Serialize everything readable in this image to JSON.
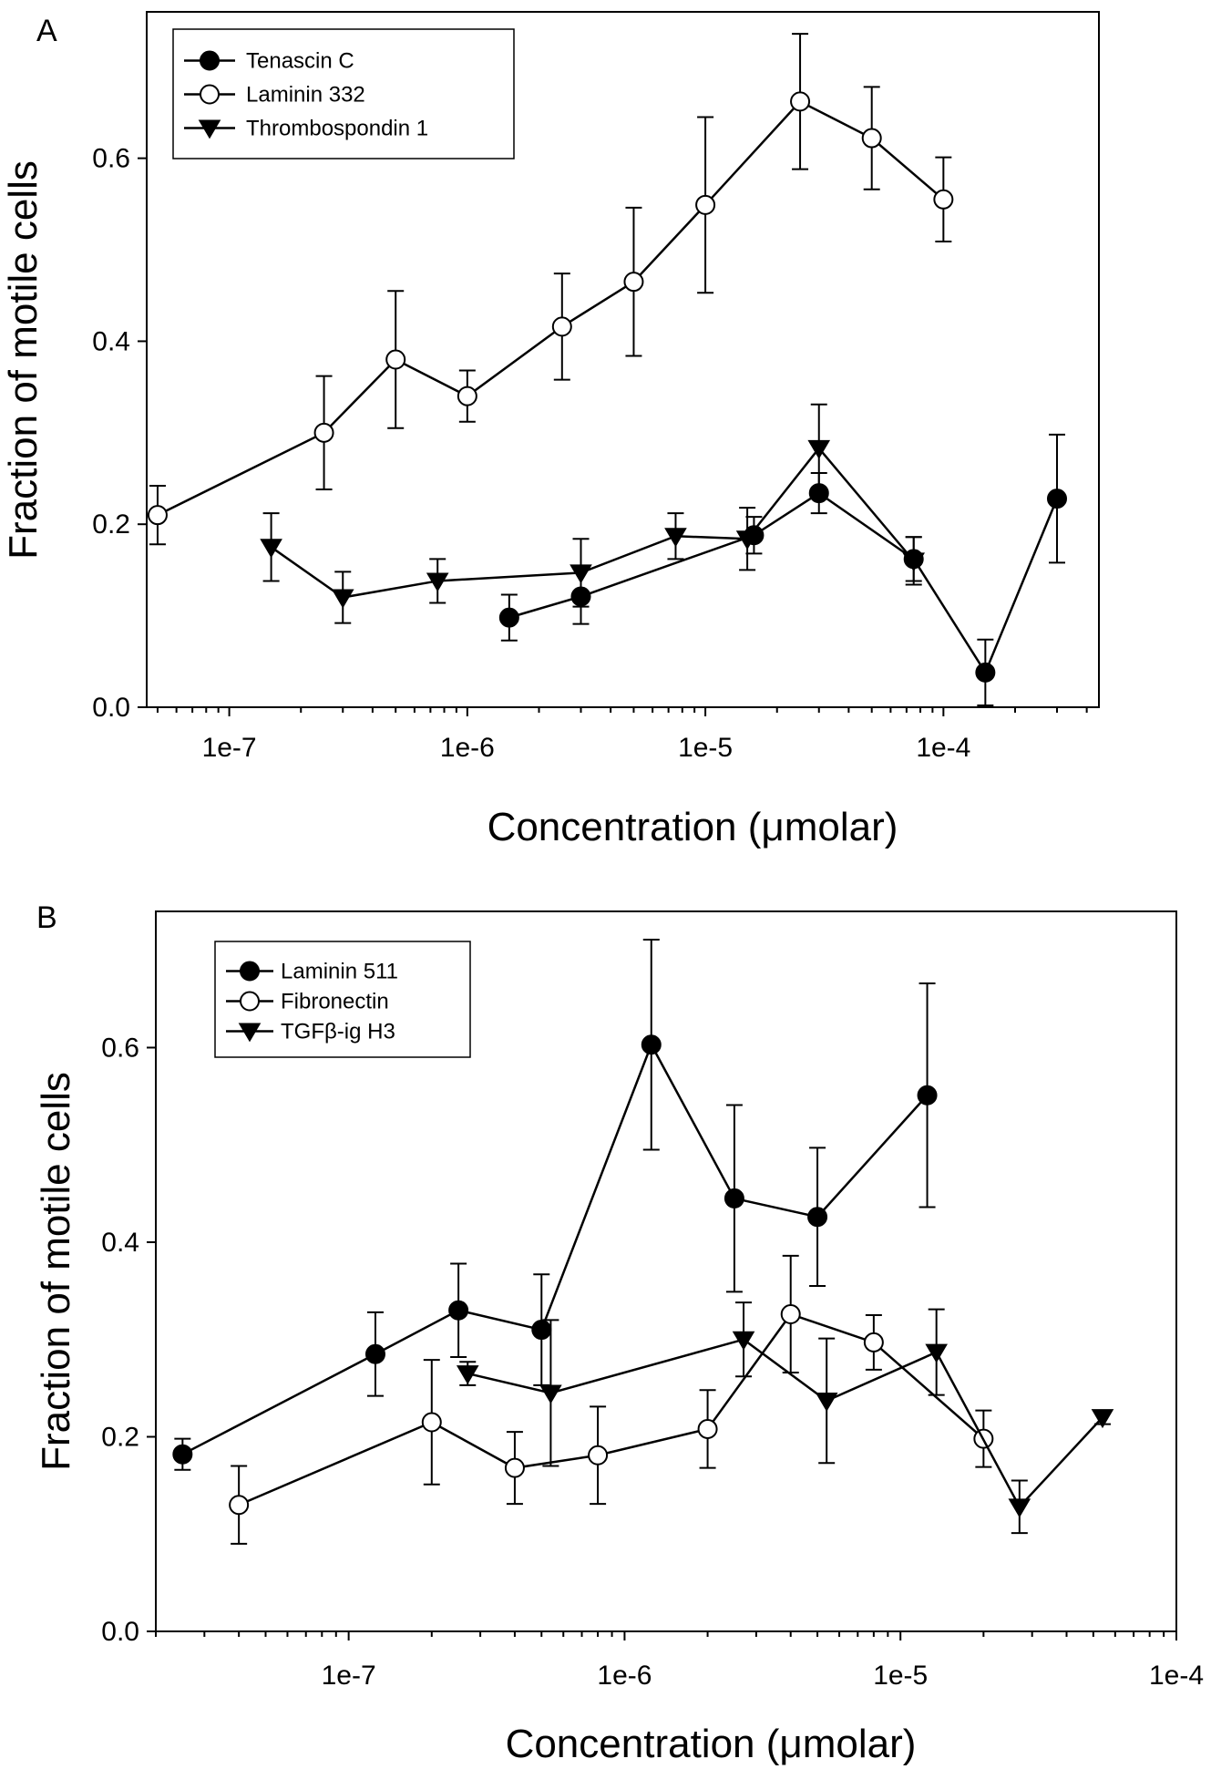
{
  "chart_data": [
    {
      "panel_label": "A",
      "type": "line",
      "xlabel": "Concentration (μmolar)",
      "ylabel": "Fraction of motile cells",
      "xscale": "log",
      "xlim": [
        4.5e-08,
        0.00045
      ],
      "ylim": [
        0,
        0.76
      ],
      "x_ticks": [
        1e-07,
        1e-06,
        1e-05,
        0.0001
      ],
      "x_tick_labels": [
        "1e-7",
        "1e-6",
        "1e-5",
        "1e-4"
      ],
      "y_ticks": [
        0,
        0.2,
        0.4,
        0.6
      ],
      "y_tick_labels": [
        "0.0",
        "0.2",
        "0.4",
        "0.6"
      ],
      "legend_position": "top-left",
      "series": [
        {
          "name": "Tenascin C",
          "marker": "filled-circle",
          "x": [
            1.5e-06,
            3e-06,
            1.6e-05,
            3e-05,
            7.5e-05,
            0.00015,
            0.0003
          ],
          "y": [
            0.098,
            0.121,
            0.188,
            0.234,
            0.162,
            0.038,
            0.228
          ],
          "err": [
            0.025,
            0.03,
            0.02,
            0.022,
            0.024,
            0.036,
            0.07
          ]
        },
        {
          "name": "Laminin 332",
          "marker": "open-circle",
          "x": [
            5e-08,
            2.5e-07,
            5e-07,
            1e-06,
            2.5e-06,
            5e-06,
            1e-05,
            2.5e-05,
            5e-05,
            0.0001
          ],
          "y": [
            0.21,
            0.3,
            0.38,
            0.34,
            0.416,
            0.465,
            0.549,
            0.662,
            0.622,
            0.555
          ],
          "err": [
            0.032,
            0.062,
            0.075,
            0.028,
            0.058,
            0.081,
            0.096,
            0.074,
            0.056,
            0.046
          ]
        },
        {
          "name": "Thrombospondin 1",
          "marker": "filled-triangle-down",
          "x": [
            1.5e-07,
            3e-07,
            7.5e-07,
            3e-06,
            7.5e-06,
            1.5e-05,
            3e-05,
            7.5e-05
          ],
          "y": [
            0.175,
            0.12,
            0.138,
            0.147,
            0.187,
            0.184,
            0.283,
            0.16
          ],
          "err": [
            0.037,
            0.028,
            0.024,
            0.037,
            0.025,
            0.034,
            0.048,
            0.026
          ]
        }
      ]
    },
    {
      "panel_label": "B",
      "type": "line",
      "xlabel": "Concentration (μmolar)",
      "ylabel": "Fraction of motile cells",
      "xscale": "log",
      "xlim": [
        2e-08,
        0.0001
      ],
      "ylim": [
        0,
        0.74
      ],
      "x_ticks": [
        1e-07,
        1e-06,
        1e-05,
        0.0001
      ],
      "x_tick_labels": [
        "1e-7",
        "1e-6",
        "1e-5",
        "1e-4"
      ],
      "y_ticks": [
        0,
        0.2,
        0.4,
        0.6
      ],
      "y_tick_labels": [
        "0.0",
        "0.2",
        "0.4",
        "0.6"
      ],
      "legend_position": "top-left",
      "series": [
        {
          "name": "Laminin 511",
          "marker": "filled-circle",
          "x": [
            2.5e-08,
            1.25e-07,
            2.5e-07,
            5e-07,
            1.25e-06,
            2.5e-06,
            5e-06,
            1.25e-05
          ],
          "y": [
            0.182,
            0.285,
            0.33,
            0.31,
            0.603,
            0.445,
            0.426,
            0.551
          ],
          "err": [
            0.016,
            0.043,
            0.048,
            0.057,
            0.108,
            0.096,
            0.071,
            0.115
          ]
        },
        {
          "name": "Fibronectin",
          "marker": "open-circle",
          "x": [
            4e-08,
            2e-07,
            4e-07,
            8e-07,
            2e-06,
            4e-06,
            8e-06,
            2e-05
          ],
          "y": [
            0.13,
            0.215,
            0.168,
            0.181,
            0.208,
            0.326,
            0.297,
            0.198
          ],
          "err": [
            0.04,
            0.064,
            0.037,
            0.05,
            0.04,
            0.06,
            0.028,
            0.029
          ]
        },
        {
          "name": "TGFβ-ig H3",
          "marker": "filled-triangle-down",
          "x": [
            2.7e-07,
            5.4e-07,
            2.7e-06,
            5.4e-06,
            1.35e-05,
            2.7e-05,
            5.4e-05
          ],
          "y": [
            0.265,
            0.245,
            0.3,
            0.237,
            0.287,
            0.128,
            0.22
          ],
          "err": [
            0.012,
            0.075,
            0.038,
            0.064,
            0.044,
            0.027,
            0.007
          ]
        }
      ]
    }
  ]
}
